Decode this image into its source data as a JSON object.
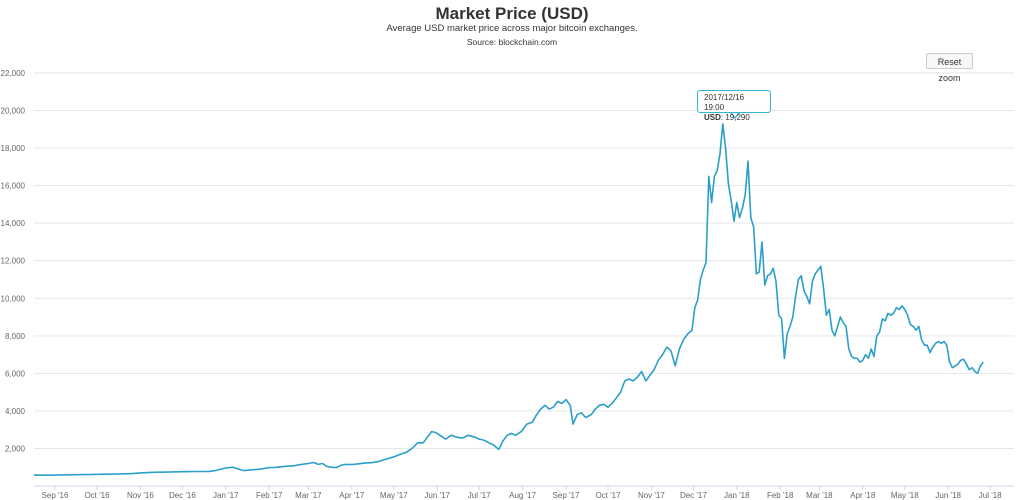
{
  "chart_data": {
    "type": "line",
    "title": "Market Price (USD)",
    "subtitle": "Average USD market price across major bitcoin exchanges.",
    "source": "Source: blockchain.com",
    "ylim": [
      0,
      22000
    ],
    "y_ticks": [
      {
        "value": 2000,
        "label": "2,000"
      },
      {
        "value": 4000,
        "label": "4,000"
      },
      {
        "value": 6000,
        "label": "6,000"
      },
      {
        "value": 8000,
        "label": "8,000"
      },
      {
        "value": 10000,
        "label": "10,000"
      },
      {
        "value": 12000,
        "label": "12,000"
      },
      {
        "value": 14000,
        "label": "14,000"
      },
      {
        "value": 16000,
        "label": "16,000"
      },
      {
        "value": 18000,
        "label": "18,000"
      },
      {
        "value": 20000,
        "label": "20,000"
      },
      {
        "value": 22000,
        "label": "22,000"
      }
    ],
    "x_range_days": [
      0,
      700
    ],
    "x_ticks": [
      {
        "day": 15,
        "label": "Sep '16"
      },
      {
        "day": 45,
        "label": "Oct '16"
      },
      {
        "day": 76,
        "label": "Nov '16"
      },
      {
        "day": 106,
        "label": "Dec '16"
      },
      {
        "day": 137,
        "label": "Jan '17"
      },
      {
        "day": 168,
        "label": "Feb '17"
      },
      {
        "day": 196,
        "label": "Mar '17"
      },
      {
        "day": 227,
        "label": "Apr '17"
      },
      {
        "day": 257,
        "label": "May '17"
      },
      {
        "day": 288,
        "label": "Jun '17"
      },
      {
        "day": 318,
        "label": "Jul '17"
      },
      {
        "day": 349,
        "label": "Aug '17"
      },
      {
        "day": 380,
        "label": "Sep '17"
      },
      {
        "day": 410,
        "label": "Oct '17"
      },
      {
        "day": 441,
        "label": "Nov '17"
      },
      {
        "day": 471,
        "label": "Dec '17"
      },
      {
        "day": 502,
        "label": "Jan '18"
      },
      {
        "day": 533,
        "label": "Feb '18"
      },
      {
        "day": 561,
        "label": "Mar '18"
      },
      {
        "day": 592,
        "label": "Apr '18"
      },
      {
        "day": 622,
        "label": "May '18"
      },
      {
        "day": 653,
        "label": "Jun '18"
      },
      {
        "day": 683,
        "label": "Jul '18"
      }
    ],
    "series": [
      {
        "name": "USD",
        "color": "#2b9fc9",
        "points": [
          [
            0,
            580
          ],
          [
            10,
            575
          ],
          [
            20,
            590
          ],
          [
            30,
            600
          ],
          [
            40,
            610
          ],
          [
            50,
            630
          ],
          [
            60,
            640
          ],
          [
            70,
            660
          ],
          [
            76,
            700
          ],
          [
            85,
            730
          ],
          [
            95,
            740
          ],
          [
            106,
            760
          ],
          [
            115,
            770
          ],
          [
            125,
            780
          ],
          [
            130,
            830
          ],
          [
            137,
            960
          ],
          [
            142,
            1000
          ],
          [
            147,
            880
          ],
          [
            150,
            820
          ],
          [
            155,
            860
          ],
          [
            162,
            900
          ],
          [
            168,
            980
          ],
          [
            172,
            990
          ],
          [
            180,
            1050
          ],
          [
            186,
            1080
          ],
          [
            191,
            1150
          ],
          [
            196,
            1200
          ],
          [
            200,
            1250
          ],
          [
            203,
            1150
          ],
          [
            206,
            1200
          ],
          [
            209,
            1050
          ],
          [
            212,
            1000
          ],
          [
            216,
            980
          ],
          [
            219,
            1100
          ],
          [
            222,
            1150
          ],
          [
            227,
            1140
          ],
          [
            232,
            1180
          ],
          [
            237,
            1230
          ],
          [
            241,
            1240
          ],
          [
            246,
            1300
          ],
          [
            251,
            1420
          ],
          [
            257,
            1550
          ],
          [
            262,
            1700
          ],
          [
            266,
            1800
          ],
          [
            270,
            2000
          ],
          [
            274,
            2300
          ],
          [
            278,
            2300
          ],
          [
            281,
            2600
          ],
          [
            284,
            2900
          ],
          [
            287,
            2850
          ],
          [
            290,
            2700
          ],
          [
            294,
            2500
          ],
          [
            298,
            2700
          ],
          [
            302,
            2600
          ],
          [
            306,
            2550
          ],
          [
            310,
            2700
          ],
          [
            315,
            2600
          ],
          [
            318,
            2500
          ],
          [
            321,
            2450
          ],
          [
            325,
            2300
          ],
          [
            328,
            2200
          ],
          [
            332,
            1950
          ],
          [
            335,
            2400
          ],
          [
            338,
            2700
          ],
          [
            341,
            2800
          ],
          [
            344,
            2700
          ],
          [
            348,
            2900
          ],
          [
            352,
            3300
          ],
          [
            356,
            3400
          ],
          [
            359,
            3800
          ],
          [
            362,
            4100
          ],
          [
            365,
            4300
          ],
          [
            368,
            4100
          ],
          [
            371,
            4200
          ],
          [
            374,
            4500
          ],
          [
            377,
            4400
          ],
          [
            380,
            4600
          ],
          [
            383,
            4300
          ],
          [
            385,
            3300
          ],
          [
            388,
            3800
          ],
          [
            391,
            3900
          ],
          [
            394,
            3650
          ],
          [
            398,
            3800
          ],
          [
            401,
            4100
          ],
          [
            404,
            4300
          ],
          [
            407,
            4350
          ],
          [
            410,
            4200
          ],
          [
            413,
            4400
          ],
          [
            416,
            4700
          ],
          [
            419,
            5000
          ],
          [
            422,
            5600
          ],
          [
            425,
            5700
          ],
          [
            428,
            5600
          ],
          [
            431,
            5800
          ],
          [
            434,
            6100
          ],
          [
            437,
            5600
          ],
          [
            440,
            5900
          ],
          [
            443,
            6200
          ],
          [
            446,
            6700
          ],
          [
            449,
            7000
          ],
          [
            452,
            7400
          ],
          [
            455,
            7200
          ],
          [
            458,
            6400
          ],
          [
            461,
            7300
          ],
          [
            464,
            7800
          ],
          [
            467,
            8100
          ],
          [
            470,
            8300
          ],
          [
            472,
            9500
          ],
          [
            474,
            9900
          ],
          [
            476,
            11000
          ],
          [
            478,
            11500
          ],
          [
            480,
            11900
          ],
          [
            482,
            16500
          ],
          [
            484,
            15100
          ],
          [
            486,
            16500
          ],
          [
            488,
            16800
          ],
          [
            490,
            17700
          ],
          [
            492,
            19290
          ],
          [
            494,
            18000
          ],
          [
            496,
            16100
          ],
          [
            498,
            15200
          ],
          [
            500,
            14100
          ],
          [
            502,
            15100
          ],
          [
            504,
            14300
          ],
          [
            506,
            14800
          ],
          [
            508,
            15500
          ],
          [
            510,
            17300
          ],
          [
            512,
            14300
          ],
          [
            514,
            13800
          ],
          [
            516,
            11300
          ],
          [
            518,
            11400
          ],
          [
            520,
            13000
          ],
          [
            522,
            10700
          ],
          [
            524,
            11200
          ],
          [
            526,
            11300
          ],
          [
            528,
            11600
          ],
          [
            530,
            10900
          ],
          [
            532,
            9100
          ],
          [
            534,
            8900
          ],
          [
            536,
            6800
          ],
          [
            538,
            8100
          ],
          [
            540,
            8500
          ],
          [
            542,
            9000
          ],
          [
            544,
            10100
          ],
          [
            546,
            11000
          ],
          [
            548,
            11200
          ],
          [
            550,
            10400
          ],
          [
            552,
            10100
          ],
          [
            554,
            9700
          ],
          [
            556,
            10900
          ],
          [
            558,
            11300
          ],
          [
            560,
            11500
          ],
          [
            562,
            11700
          ],
          [
            564,
            10500
          ],
          [
            566,
            9100
          ],
          [
            568,
            9400
          ],
          [
            570,
            8300
          ],
          [
            572,
            8000
          ],
          [
            574,
            8500
          ],
          [
            576,
            9000
          ],
          [
            578,
            8700
          ],
          [
            580,
            8500
          ],
          [
            582,
            7300
          ],
          [
            584,
            6900
          ],
          [
            586,
            6800
          ],
          [
            588,
            6800
          ],
          [
            590,
            6600
          ],
          [
            592,
            6700
          ],
          [
            594,
            7000
          ],
          [
            596,
            6800
          ],
          [
            598,
            7300
          ],
          [
            600,
            6900
          ],
          [
            602,
            8000
          ],
          [
            604,
            8200
          ],
          [
            606,
            8900
          ],
          [
            608,
            8800
          ],
          [
            610,
            9200
          ],
          [
            612,
            9100
          ],
          [
            614,
            9200
          ],
          [
            616,
            9500
          ],
          [
            618,
            9400
          ],
          [
            620,
            9600
          ],
          [
            622,
            9400
          ],
          [
            624,
            9100
          ],
          [
            626,
            8600
          ],
          [
            628,
            8500
          ],
          [
            630,
            8300
          ],
          [
            632,
            8500
          ],
          [
            634,
            7800
          ],
          [
            636,
            7500
          ],
          [
            638,
            7500
          ],
          [
            640,
            7100
          ],
          [
            642,
            7400
          ],
          [
            644,
            7600
          ],
          [
            646,
            7700
          ],
          [
            648,
            7600
          ],
          [
            650,
            7700
          ],
          [
            652,
            7500
          ],
          [
            654,
            6600
          ],
          [
            656,
            6300
          ],
          [
            658,
            6400
          ],
          [
            660,
            6500
          ],
          [
            662,
            6700
          ],
          [
            664,
            6750
          ],
          [
            666,
            6500
          ],
          [
            668,
            6200
          ],
          [
            670,
            6300
          ],
          [
            672,
            6100
          ],
          [
            674,
            6000
          ],
          [
            676,
            6400
          ],
          [
            678,
            6600
          ]
        ]
      }
    ],
    "tooltip": {
      "date": "2017/12/16 19:00",
      "label": "USD",
      "value": "19,290",
      "day": 492,
      "price": 19290
    }
  },
  "controls": {
    "reset_zoom": "Reset zoom"
  }
}
